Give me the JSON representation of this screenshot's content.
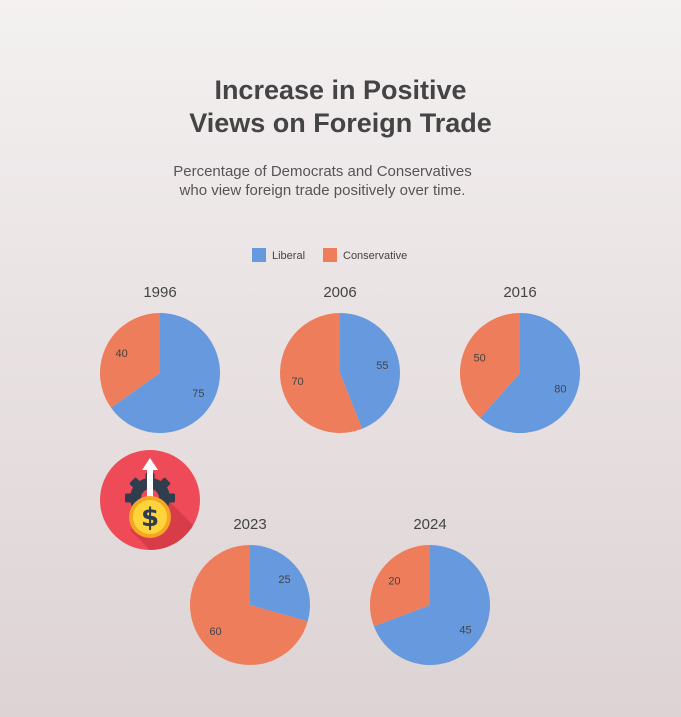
{
  "header": {
    "title_lines": [
      "Increase in Positive",
      "Views on Foreign Trade"
    ],
    "subtitle_lines": [
      "Percentage of Democrats and Conservatives",
      "who view foreign trade positively over time."
    ]
  },
  "icon": {
    "name": "money-growth-gear-icon"
  },
  "colors": {
    "liberal": "#6699dd",
    "conservative": "#ee7d5b"
  },
  "chart_data": {
    "type": "pie",
    "legend": {
      "placement": "top-center",
      "entries": [
        "Liberal",
        "Conservative"
      ]
    },
    "pies": [
      {
        "title": "1996",
        "slices": [
          {
            "name": "Liberal",
            "value": 75
          },
          {
            "name": "Conservative",
            "value": 40
          }
        ]
      },
      {
        "title": "2006",
        "slices": [
          {
            "name": "Liberal",
            "value": 55
          },
          {
            "name": "Conservative",
            "value": 70
          }
        ]
      },
      {
        "title": "2016",
        "slices": [
          {
            "name": "Liberal",
            "value": 80
          },
          {
            "name": "Conservative",
            "value": 50
          }
        ]
      },
      {
        "title": "2023",
        "slices": [
          {
            "name": "Liberal",
            "value": 25
          },
          {
            "name": "Conservative",
            "value": 60
          }
        ]
      },
      {
        "title": "2024",
        "slices": [
          {
            "name": "Liberal",
            "value": 45
          },
          {
            "name": "Conservative",
            "value": 20
          }
        ]
      }
    ]
  }
}
